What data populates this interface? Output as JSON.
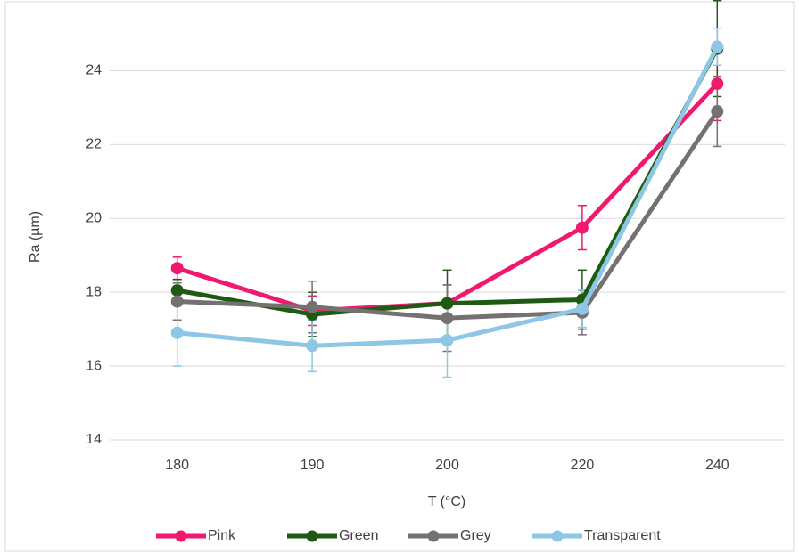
{
  "chart_data": {
    "type": "line",
    "x_label": "T (°C)",
    "y_label": "Ra (µm)",
    "categories": [
      "180",
      "190",
      "200",
      "220",
      "240"
    ],
    "ylim": [
      14,
      25
    ],
    "yticks": [
      14,
      16,
      18,
      20,
      22,
      24
    ],
    "grid": true,
    "legend": "bottom",
    "series": [
      {
        "name": "Pink",
        "color": "#f0196e",
        "values": [
          18.65,
          17.5,
          17.7,
          19.75,
          23.65
        ],
        "errors": [
          0.3,
          0.4,
          0.5,
          0.6,
          1.0
        ]
      },
      {
        "name": "Green",
        "color": "#1e5a14",
        "values": [
          18.05,
          17.4,
          17.7,
          17.8,
          24.6
        ],
        "errors": [
          0.3,
          0.6,
          0.9,
          0.8,
          1.3
        ]
      },
      {
        "name": "Grey",
        "color": "#767171",
        "values": [
          17.75,
          17.6,
          17.3,
          17.45,
          22.9
        ],
        "errors": [
          0.5,
          0.7,
          0.9,
          0.6,
          0.95
        ]
      },
      {
        "name": "Transparent",
        "color": "#8ec6e6",
        "values": [
          16.9,
          16.55,
          16.7,
          17.55,
          24.65
        ],
        "errors": [
          0.9,
          0.7,
          1.0,
          0.5,
          0.5
        ]
      }
    ]
  }
}
